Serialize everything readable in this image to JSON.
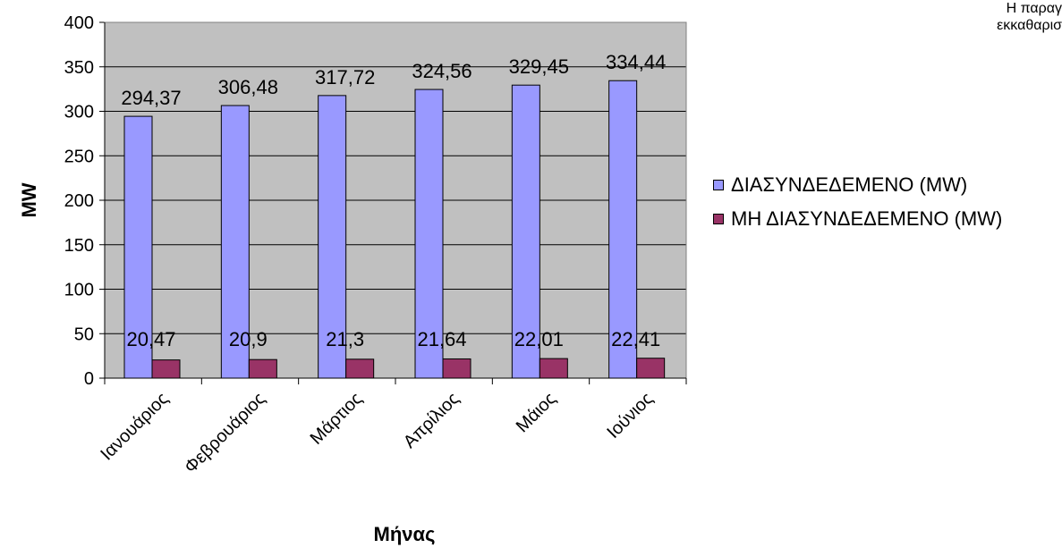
{
  "chart_data": {
    "type": "bar",
    "categories": [
      "Ιανουάριος",
      "Φεβρουάριος",
      "Μάρτιος",
      "Απρίλιος",
      "Μάιος",
      "Ιούνιος"
    ],
    "series": [
      {
        "name": "ΔΙΑΣΥΝΔΕΔΕΜΕΝΟ (MW)",
        "values": [
          294.37,
          306.48,
          317.72,
          324.56,
          329.45,
          334.44
        ],
        "labels": [
          "294,37",
          "306,48",
          "317,72",
          "324,56",
          "329,45",
          "334,44"
        ],
        "color": "#9999ff"
      },
      {
        "name": "ΜΗ ΔΙΑΣΥΝΔΕΔΕΜΕΝΟ (MW)",
        "values": [
          20.47,
          20.9,
          21.3,
          21.64,
          22.01,
          22.41
        ],
        "labels": [
          "20,47",
          "20,9",
          "21,3",
          "21,64",
          "22,01",
          "22,41"
        ],
        "color": "#993366"
      }
    ],
    "xlabel": "Μήνας",
    "ylabel": "MW",
    "ylim": [
      0,
      400
    ],
    "yticks": [
      0,
      50,
      100,
      150,
      200,
      250,
      300,
      350,
      400
    ],
    "grid": true,
    "plot_background": "#c0c0c0",
    "legend_position": "right"
  },
  "corner_note": {
    "line1": "Η παραγ",
    "line2": "εκκαθαρισ"
  }
}
